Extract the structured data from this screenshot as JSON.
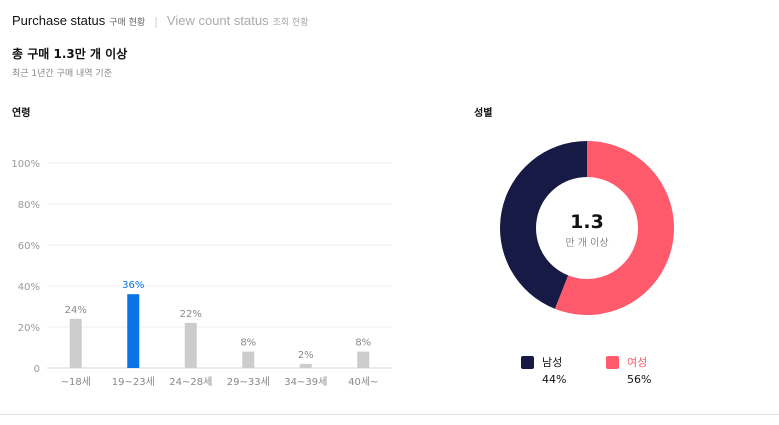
{
  "tabs": [
    {
      "title": "Purchase status",
      "subtitle": "구매 현황"
    },
    {
      "title": "View count status",
      "subtitle": "조회 현황"
    }
  ],
  "summary": {
    "title": "총 구매 1.3만 개 이상",
    "subtitle": "최근 1년간 구매 내역 기준"
  },
  "colors": {
    "bar_default": "#cccccc",
    "bar_highlight": "#0a73e6",
    "male": "#171a45",
    "female": "#ff5a6b"
  },
  "chart_data": [
    {
      "type": "bar",
      "title": "연령",
      "categories": [
        "~18세",
        "19~23세",
        "24~28세",
        "29~33세",
        "34~39세",
        "40세~"
      ],
      "values": [
        24,
        36,
        22,
        8,
        2,
        8
      ],
      "value_labels": [
        "24%",
        "36%",
        "22%",
        "8%",
        "2%",
        "8%"
      ],
      "highlight_index": 1,
      "yticks": [
        "0",
        "20%",
        "40%",
        "60%",
        "80%",
        "100%"
      ],
      "ylim": [
        0,
        100
      ],
      "grid": true
    },
    {
      "type": "pie",
      "style": "donut",
      "title": "성별",
      "center_value": "1.3",
      "center_label": "만 개 이상",
      "slices": [
        {
          "label": "남성",
          "value": 44,
          "value_label": "44%",
          "color": "#171a45"
        },
        {
          "label": "여성",
          "value": 56,
          "value_label": "56%",
          "color": "#ff5a6b"
        }
      ],
      "legend": "bottom"
    }
  ]
}
